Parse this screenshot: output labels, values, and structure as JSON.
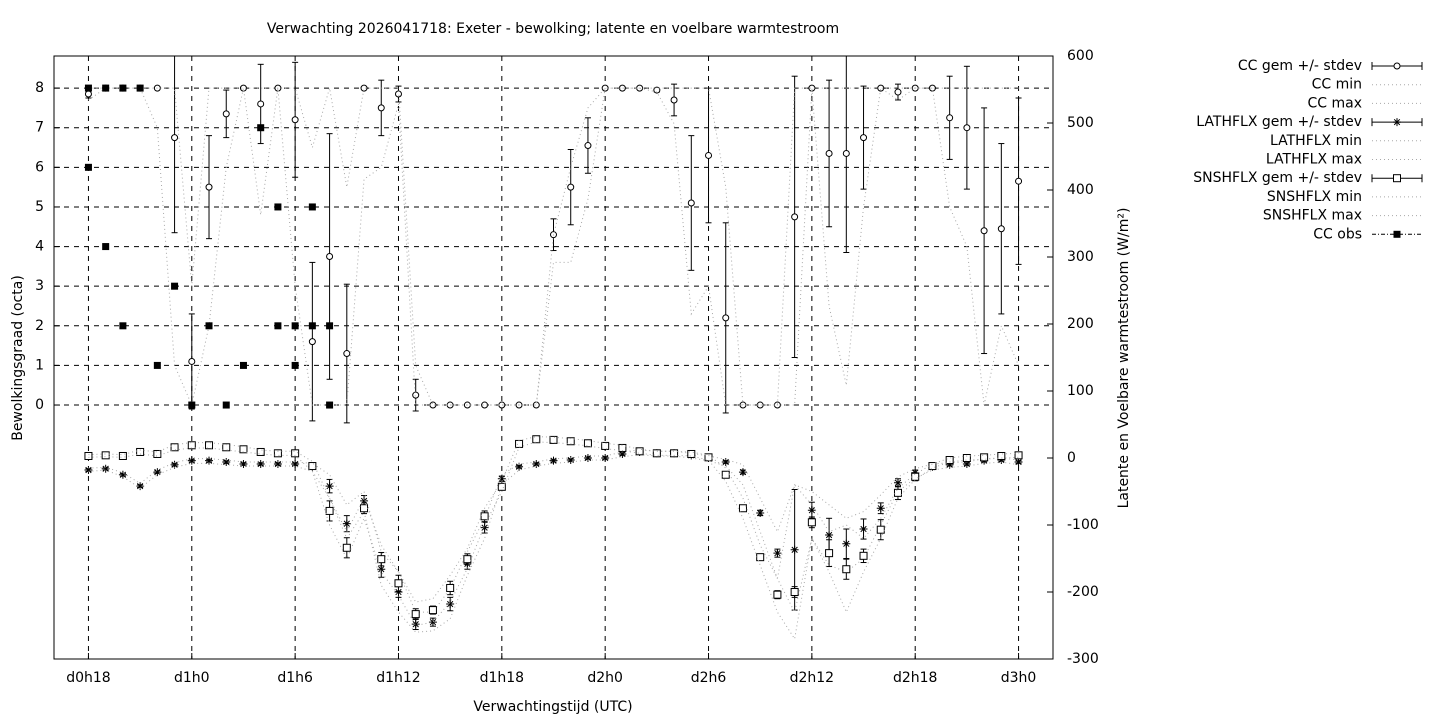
{
  "chart_data": {
    "type": "line",
    "title": "Verwachting 2026041718: Exeter - bewolking; latente en voelbare warmtestroom",
    "xlabel": "Verwachtingstijd (UTC)",
    "ylabel": "Bewolkingsgraad (octa)",
    "y2label": "Latente en Voelbare warmtestroom (W/m²)",
    "grid": true,
    "legend": "outside-top-right",
    "xlim": [
      16,
      74
    ],
    "xticks": [
      {
        "value": 18,
        "label": "d0h18"
      },
      {
        "value": 24,
        "label": "d1h0"
      },
      {
        "value": 30,
        "label": "d1h6"
      },
      {
        "value": 36,
        "label": "d1h12"
      },
      {
        "value": 42,
        "label": "d1h18"
      },
      {
        "value": 48,
        "label": "d2h0"
      },
      {
        "value": 54,
        "label": "d2h6"
      },
      {
        "value": 60,
        "label": "d2h12"
      },
      {
        "value": 66,
        "label": "d2h18"
      },
      {
        "value": 72,
        "label": "d3h0"
      }
    ],
    "ylim": [
      -6.41,
      8.81
    ],
    "yticks": [
      0,
      1,
      2,
      3,
      4,
      5,
      6,
      7,
      8
    ],
    "y2lim": [
      -300,
      600
    ],
    "y2ticks": [
      -300,
      -200,
      -100,
      0,
      100,
      200,
      300,
      400,
      500,
      600
    ],
    "x": [
      18,
      19,
      20,
      21,
      22,
      23,
      24,
      25,
      26,
      27,
      28,
      29,
      30,
      31,
      32,
      33,
      34,
      35,
      36,
      37,
      38,
      39,
      40,
      41,
      42,
      43,
      44,
      45,
      46,
      47,
      48,
      49,
      50,
      51,
      52,
      53,
      54,
      55,
      56,
      57,
      58,
      59,
      60,
      61,
      62,
      63,
      64,
      65,
      66,
      67,
      68,
      69,
      70,
      71,
      72
    ],
    "series": [
      {
        "name": "CC gem +/- stdev",
        "style": "errorbars",
        "marker": "circle",
        "color": "#000000",
        "values": [
          7.85,
          8,
          8,
          8,
          8,
          6.75,
          1.1,
          5.5,
          7.35,
          8,
          7.6,
          8,
          7.2,
          1.6,
          3.75,
          1.3,
          8,
          7.5,
          7.85,
          0.25,
          0,
          0,
          0,
          0,
          0,
          0,
          0,
          4.3,
          5.5,
          6.55,
          8,
          8,
          8,
          7.95,
          7.7,
          5.1,
          6.3,
          2.2,
          0,
          0,
          0,
          4.75,
          8,
          6.35,
          6.35,
          6.75,
          8,
          7.9,
          8,
          8,
          7.25,
          7.0,
          4.4,
          4.45,
          5.65
        ],
        "errors": [
          0.1,
          0,
          0,
          0,
          0,
          2.4,
          1.2,
          1.3,
          0.6,
          0,
          1.0,
          0,
          1.45,
          2.0,
          3.1,
          1.75,
          0,
          0.7,
          0.2,
          0.4,
          0,
          0,
          0,
          0,
          0,
          0,
          0,
          0.4,
          0.95,
          0.7,
          0,
          0,
          0,
          0.05,
          0.4,
          1.7,
          1.7,
          2.4,
          0,
          0,
          0,
          3.55,
          0,
          1.85,
          2.5,
          1.3,
          0,
          0.2,
          0,
          0,
          1.05,
          1.55,
          3.1,
          2.15,
          2.1
        ]
      },
      {
        "name": "CC min",
        "style": "dotted",
        "color": "#a8a8a8",
        "values": [
          7.7,
          8,
          8,
          8,
          7,
          1,
          0,
          2,
          6,
          8,
          4.8,
          8,
          3,
          0,
          0,
          0,
          5.7,
          6,
          7.6,
          0,
          0,
          0,
          0,
          0,
          0,
          0,
          0,
          3.6,
          3.6,
          5.2,
          8,
          8,
          8,
          7.9,
          7.1,
          2.3,
          3,
          0,
          0,
          0,
          0,
          0,
          8,
          2.5,
          0.5,
          5,
          8,
          7.7,
          8,
          8,
          5,
          4,
          0,
          2,
          1
        ]
      },
      {
        "name": "CC max",
        "style": "dotted",
        "color": "#a8a8a8",
        "values": [
          8,
          8,
          8,
          8,
          8,
          8,
          3,
          8,
          8,
          8,
          8,
          8,
          8,
          6.5,
          8,
          5.5,
          8,
          8,
          8,
          1,
          0,
          0,
          0,
          0,
          0,
          0,
          0,
          4.3,
          6,
          7.5,
          8,
          8,
          8,
          8,
          8,
          8,
          8,
          5.5,
          0,
          0,
          0,
          8,
          8,
          8,
          8,
          8,
          8,
          8,
          8,
          8,
          8,
          8,
          8,
          8,
          8
        ]
      },
      {
        "name": "LATHFLX gem +/- stdev",
        "style": "errorbars",
        "marker": "star",
        "color": "#000000",
        "axis": "y2",
        "values": [
          -18,
          -16,
          -25,
          -42,
          -21,
          -10,
          -4,
          -4,
          -6,
          -9,
          -9,
          -9,
          -9,
          -13,
          -42,
          -98,
          -64,
          -166,
          -200,
          -248,
          -245,
          -218,
          -158,
          -104,
          -31,
          -13,
          -9,
          -4,
          -3,
          0,
          0,
          6,
          9,
          7,
          7,
          4,
          0,
          -6,
          -21,
          -82,
          -142,
          -137,
          -78,
          -115,
          -128,
          -106,
          -75,
          -37,
          -22,
          -13,
          -10,
          -9,
          -4,
          -3,
          -6
        ],
        "errors": [
          2,
          2,
          2,
          2,
          2,
          2,
          2,
          2,
          2,
          2,
          2,
          2,
          2,
          3,
          10,
          12,
          8,
          12,
          8,
          8,
          6,
          10,
          8,
          8,
          4,
          2,
          2,
          2,
          2,
          2,
          2,
          2,
          2,
          2,
          2,
          2,
          2,
          2,
          3,
          4,
          6,
          90,
          12,
          25,
          22,
          15,
          8,
          6,
          4,
          2,
          2,
          2,
          2,
          2,
          2
        ]
      },
      {
        "name": "LATHFLX min",
        "style": "dotted",
        "color": "#a8a8a8",
        "axis": "y2",
        "values": [
          -20,
          -18,
          -28,
          -45,
          -25,
          -14,
          -8,
          -8,
          -10,
          -12,
          -12,
          -12,
          -12,
          -20,
          -60,
          -120,
          -80,
          -190,
          -230,
          -260,
          -258,
          -240,
          -175,
          -120,
          -40,
          -18,
          -12,
          -8,
          -6,
          -3,
          -3,
          2,
          5,
          3,
          3,
          0,
          -4,
          -12,
          -40,
          -110,
          -180,
          -230,
          -120,
          -160,
          -170,
          -150,
          -100,
          -50,
          -30,
          -18,
          -14,
          -12,
          -8,
          -6,
          -10
        ]
      },
      {
        "name": "LATHFLX max",
        "style": "dotted",
        "color": "#a8a8a8",
        "axis": "y2",
        "values": [
          -15,
          -14,
          -22,
          -38,
          -18,
          -7,
          -1,
          -1,
          -3,
          -6,
          -6,
          -6,
          -6,
          -8,
          -25,
          -70,
          -50,
          -140,
          -170,
          -230,
          -230,
          -195,
          -140,
          -90,
          -25,
          -9,
          -6,
          -1,
          0,
          3,
          3,
          9,
          12,
          10,
          10,
          7,
          3,
          -2,
          -10,
          -60,
          -110,
          -40,
          -50,
          -70,
          -90,
          -80,
          -55,
          -28,
          -16,
          -9,
          -7,
          -6,
          -1,
          0,
          -3
        ]
      },
      {
        "name": "SNSHFLX gem +/- stdev",
        "style": "errorbars",
        "marker": "square",
        "color": "#000000",
        "axis": "y2",
        "values": [
          3,
          4,
          3,
          9,
          6,
          16,
          19,
          19,
          16,
          13,
          9,
          7,
          7,
          -12,
          -79,
          -134,
          -75,
          -151,
          -187,
          -233,
          -227,
          -194,
          -151,
          -87,
          -43,
          21,
          28,
          27,
          25,
          22,
          18,
          15,
          10,
          7,
          7,
          6,
          1,
          -25,
          -75,
          -148,
          -204,
          -200,
          -96,
          -142,
          -166,
          -146,
          -107,
          -52,
          -28,
          -12,
          -3,
          0,
          1,
          3,
          4
        ],
        "errors": [
          3,
          3,
          3,
          3,
          3,
          3,
          3,
          3,
          3,
          3,
          3,
          3,
          3,
          4,
          15,
          15,
          8,
          10,
          12,
          8,
          6,
          10,
          8,
          8,
          4,
          3,
          3,
          3,
          3,
          3,
          3,
          3,
          3,
          3,
          3,
          3,
          3,
          3,
          3,
          3,
          6,
          8,
          8,
          20,
          15,
          10,
          15,
          10,
          6,
          4,
          3,
          3,
          3,
          3,
          4
        ]
      },
      {
        "name": "SNSHFLX min",
        "style": "dotted",
        "color": "#a8a8a8",
        "axis": "y2",
        "values": [
          1,
          2,
          1,
          6,
          3,
          12,
          15,
          15,
          12,
          9,
          6,
          4,
          4,
          -20,
          -100,
          -150,
          -90,
          -170,
          -205,
          -250,
          -245,
          -215,
          -165,
          -100,
          -50,
          16,
          24,
          23,
          21,
          18,
          14,
          11,
          7,
          4,
          4,
          3,
          -3,
          -35,
          -90,
          -160,
          -230,
          -270,
          -120,
          -170,
          -230,
          -170,
          -120,
          -60,
          -32,
          -15,
          -6,
          -3,
          -2,
          0,
          1
        ]
      },
      {
        "name": "SNSHFLX max",
        "style": "dotted",
        "color": "#a8a8a8",
        "axis": "y2",
        "values": [
          5,
          6,
          5,
          12,
          9,
          20,
          23,
          23,
          20,
          17,
          12,
          10,
          10,
          -5,
          -60,
          -110,
          -60,
          -130,
          -170,
          -215,
          -210,
          -175,
          -135,
          -75,
          -35,
          26,
          32,
          31,
          29,
          26,
          22,
          19,
          13,
          10,
          10,
          9,
          4,
          -15,
          -60,
          -130,
          -180,
          -40,
          -70,
          -110,
          -100,
          -120,
          -90,
          -45,
          -24,
          -9,
          0,
          3,
          4,
          6,
          7
        ]
      },
      {
        "name": "CC obs",
        "style": "points",
        "marker": "filled-square",
        "color": "#000000",
        "x": [
          18,
          18,
          19,
          19,
          20,
          20,
          21,
          22,
          23,
          24,
          25,
          26,
          27,
          28,
          29,
          29,
          30,
          30,
          31,
          31,
          32,
          32
        ],
        "values": [
          8,
          6,
          8,
          4,
          8,
          2,
          8,
          1,
          3,
          0,
          2,
          0,
          1,
          7,
          5,
          2,
          2,
          1,
          5,
          2,
          2,
          0
        ]
      }
    ]
  }
}
